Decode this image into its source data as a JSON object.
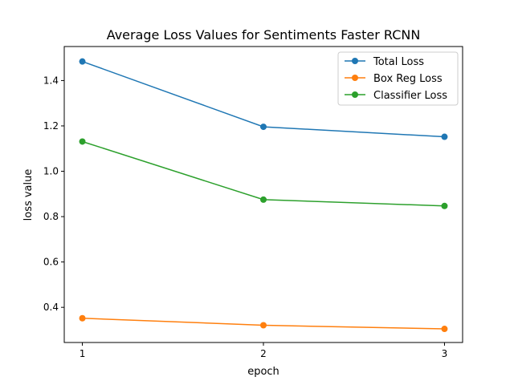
{
  "chart_data": {
    "type": "line",
    "title": "Average Loss Values for Sentiments Faster RCNN",
    "xlabel": "epoch",
    "ylabel": "loss value",
    "x": [
      1,
      2,
      3
    ],
    "xticks": [
      "1",
      "2",
      "3"
    ],
    "yticks": [
      "0.4",
      "0.6",
      "0.8",
      "1.0",
      "1.2",
      "1.4"
    ],
    "ylim": [
      0.245,
      1.55
    ],
    "xlim": [
      0.9,
      3.1
    ],
    "grid": false,
    "legend_position": "top-right",
    "series": [
      {
        "name": "Total Loss",
        "color": "#1f77b4",
        "values": [
          1.484,
          1.196,
          1.152
        ]
      },
      {
        "name": "Box Reg Loss",
        "color": "#ff7f0e",
        "values": [
          0.352,
          0.321,
          0.305
        ]
      },
      {
        "name": "Classifier Loss",
        "color": "#2ca02c",
        "values": [
          1.131,
          0.875,
          0.847
        ]
      }
    ]
  }
}
